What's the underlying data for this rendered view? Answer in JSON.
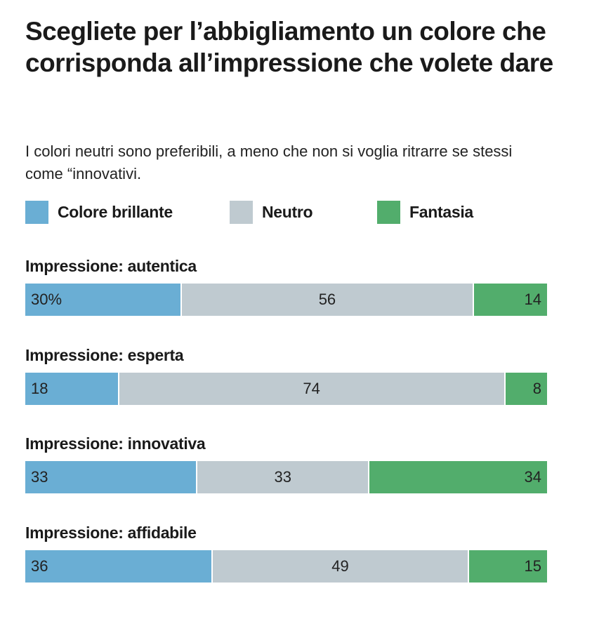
{
  "chart_data": {
    "type": "bar",
    "stacked": true,
    "orientation": "horizontal",
    "title": "Scegliete per l’abbigliamento un colore che corrisponda all’impressione che volete dare",
    "subtitle": "I colori neutri sono preferibili, a meno che non si voglia ritrarre se stessi come “innovativi.",
    "legend_position": "top-left",
    "series": [
      {
        "name": "Colore brillante",
        "color": "#6aaed4"
      },
      {
        "name": "Neutro",
        "color": "#bfcad0"
      },
      {
        "name": "Fantasia",
        "color": "#52ad6c"
      }
    ],
    "rows": [
      {
        "label": "Impressione: autentica",
        "values": [
          30,
          56,
          14
        ],
        "value_labels": [
          "30%",
          "56",
          "14"
        ]
      },
      {
        "label": "Impressione: esperta",
        "values": [
          18,
          74,
          8
        ],
        "value_labels": [
          "18",
          "74",
          "8"
        ]
      },
      {
        "label": "Impressione: innovativa",
        "values": [
          33,
          33,
          34
        ],
        "value_labels": [
          "33",
          "33",
          "34"
        ]
      },
      {
        "label": "Impressione: affidabile",
        "values": [
          36,
          49,
          15
        ],
        "value_labels": [
          "36",
          "49",
          "15"
        ]
      }
    ],
    "unit": "%"
  }
}
